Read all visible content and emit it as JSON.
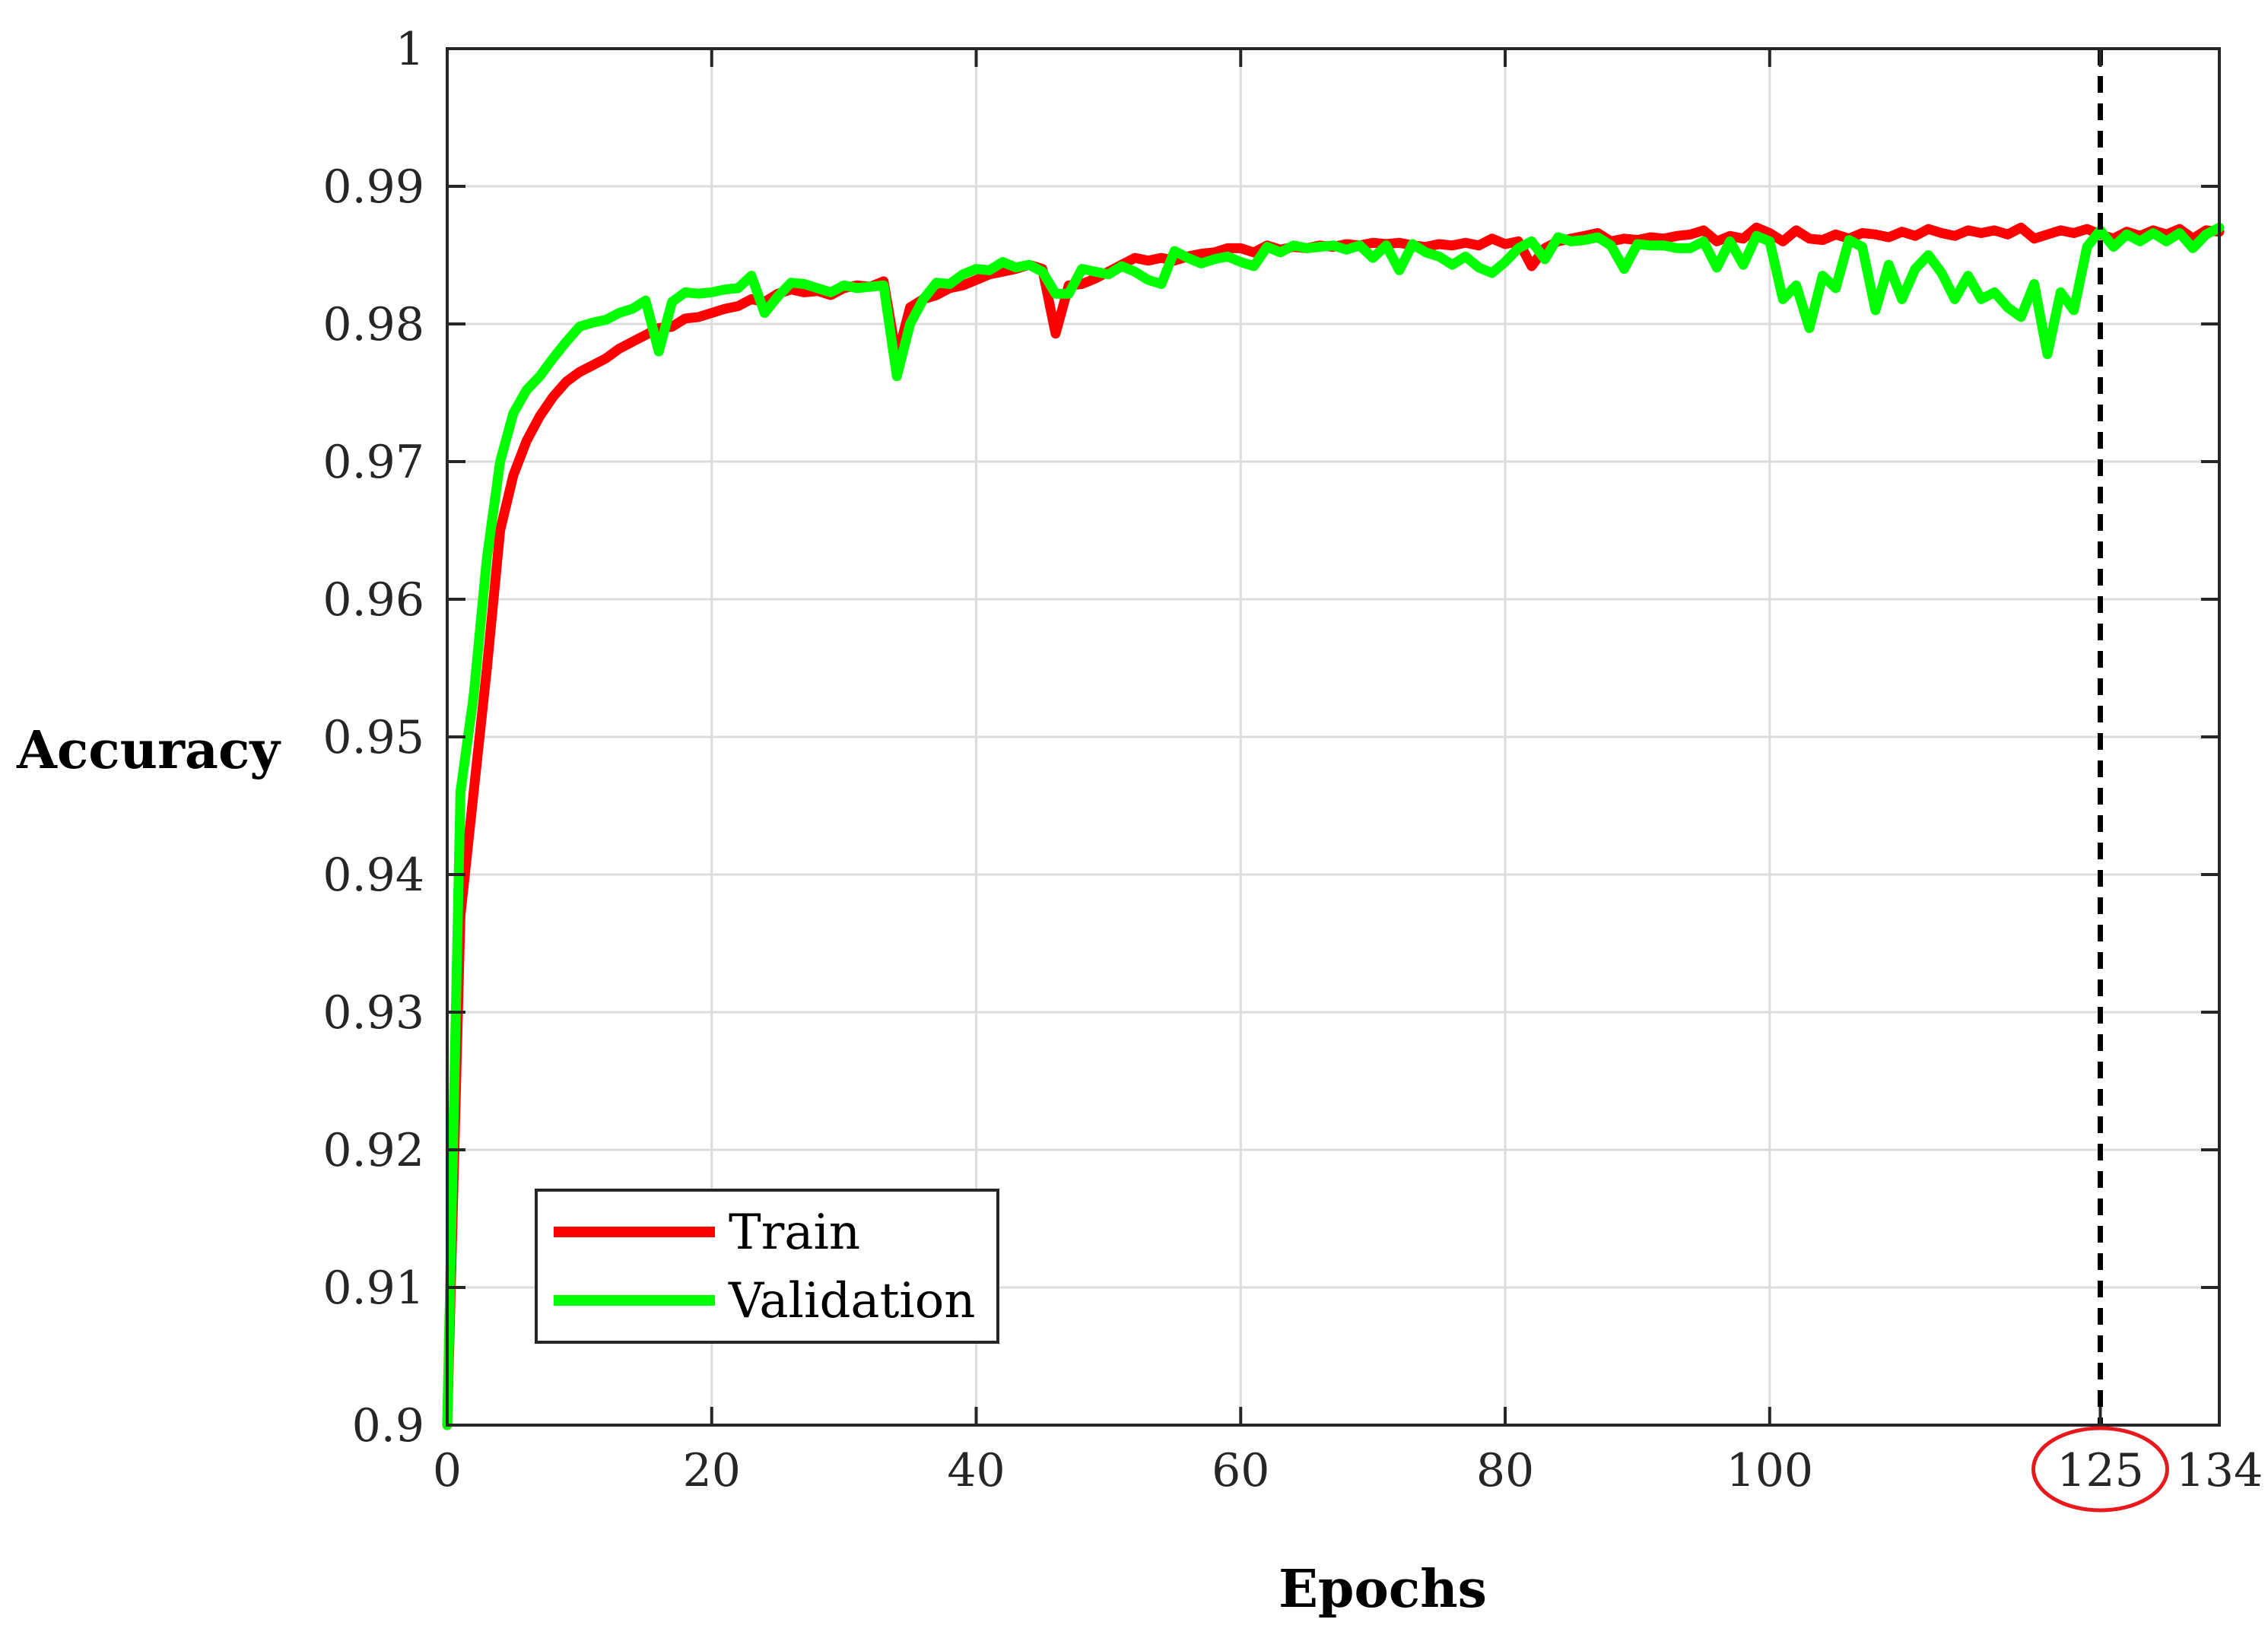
{
  "chart_data": {
    "type": "line",
    "title": "",
    "xlabel": "Epochs",
    "ylabel": "Accuracy",
    "xlim": [
      0,
      134
    ],
    "ylim": [
      0.9,
      1.0
    ],
    "grid": true,
    "xticks": [
      0,
      20,
      40,
      60,
      80,
      100,
      125,
      134
    ],
    "xtick_labels": [
      "0",
      "20",
      "40",
      "60",
      "80",
      "100",
      "125",
      "134"
    ],
    "yticks": [
      0.9,
      0.91,
      0.92,
      0.93,
      0.94,
      0.95,
      0.96,
      0.97,
      0.98,
      0.99,
      1.0
    ],
    "ytick_labels": [
      "0.9",
      "0.91",
      "0.92",
      "0.93",
      "0.94",
      "0.95",
      "0.96",
      "0.97",
      "0.98",
      "0.99",
      "1"
    ],
    "legend_position": "bottom-left",
    "annotations": [
      {
        "type": "vertical-dashed-line",
        "x": 125,
        "color": "#000000"
      },
      {
        "type": "circle-highlight",
        "target_tick": "125",
        "color": "#e8191c"
      }
    ],
    "series": [
      {
        "name": "Train",
        "color": "#ff0000",
        "x": [
          0,
          1,
          2,
          3,
          4,
          5,
          6,
          7,
          8,
          9,
          10,
          11,
          12,
          13,
          14,
          15,
          16,
          17,
          18,
          19,
          20,
          21,
          22,
          23,
          24,
          25,
          26,
          27,
          28,
          29,
          30,
          31,
          32,
          33,
          34,
          35,
          36,
          37,
          38,
          39,
          40,
          41,
          42,
          43,
          44,
          45,
          46,
          47,
          48,
          49,
          50,
          51,
          52,
          53,
          54,
          55,
          56,
          57,
          58,
          59,
          60,
          61,
          62,
          63,
          64,
          65,
          66,
          67,
          68,
          69,
          70,
          71,
          72,
          73,
          74,
          75,
          76,
          77,
          78,
          79,
          80,
          81,
          82,
          83,
          84,
          85,
          86,
          87,
          88,
          89,
          90,
          91,
          92,
          93,
          94,
          95,
          96,
          97,
          98,
          99,
          100,
          101,
          102,
          103,
          104,
          105,
          106,
          107,
          108,
          109,
          110,
          111,
          112,
          113,
          114,
          115,
          116,
          117,
          118,
          119,
          120,
          121,
          122,
          123,
          124,
          125,
          126,
          127,
          128,
          129,
          130,
          131,
          132,
          133,
          134
        ],
        "values": [
          0.9,
          0.937,
          0.946,
          0.955,
          0.965,
          0.969,
          0.9715,
          0.9733,
          0.9747,
          0.9758,
          0.9765,
          0.977,
          0.9775,
          0.9782,
          0.9787,
          0.9792,
          0.9797,
          0.9798,
          0.9804,
          0.9805,
          0.9808,
          0.9811,
          0.9813,
          0.9818,
          0.9816,
          0.9822,
          0.9825,
          0.9823,
          0.9824,
          0.9821,
          0.9826,
          0.9828,
          0.9827,
          0.9831,
          0.9775,
          0.9812,
          0.9818,
          0.9821,
          0.9826,
          0.9828,
          0.9832,
          0.9836,
          0.9838,
          0.984,
          0.9843,
          0.984,
          0.9793,
          0.9828,
          0.9829,
          0.9833,
          0.9838,
          0.9843,
          0.9848,
          0.9846,
          0.9848,
          0.9846,
          0.9849,
          0.9851,
          0.9852,
          0.9855,
          0.9855,
          0.9852,
          0.9857,
          0.9854,
          0.9856,
          0.9855,
          0.9857,
          0.9856,
          0.9858,
          0.9857,
          0.9859,
          0.9858,
          0.9859,
          0.9857,
          0.9856,
          0.9858,
          0.9857,
          0.9859,
          0.9857,
          0.9862,
          0.9858,
          0.986,
          0.9842,
          0.9855,
          0.986,
          0.9862,
          0.9864,
          0.9866,
          0.986,
          0.9862,
          0.9861,
          0.9863,
          0.9862,
          0.9864,
          0.9865,
          0.9868,
          0.986,
          0.9864,
          0.9862,
          0.987,
          0.9866,
          0.986,
          0.9868,
          0.9862,
          0.9861,
          0.9865,
          0.9862,
          0.9866,
          0.9865,
          0.9863,
          0.9867,
          0.9864,
          0.9869,
          0.9866,
          0.9864,
          0.9868,
          0.9866,
          0.9868,
          0.9865,
          0.987,
          0.9862,
          0.9865,
          0.9868,
          0.9866,
          0.9869,
          0.9865,
          0.9862,
          0.9867,
          0.9864,
          0.9868,
          0.9865,
          0.9869,
          0.9862,
          0.9868,
          0.9867
        ]
      },
      {
        "name": "Validation",
        "color": "#00ff00",
        "x": [
          0,
          1,
          2,
          3,
          4,
          5,
          6,
          7,
          8,
          9,
          10,
          11,
          12,
          13,
          14,
          15,
          16,
          17,
          18,
          19,
          20,
          21,
          22,
          23,
          24,
          25,
          26,
          27,
          28,
          29,
          30,
          31,
          32,
          33,
          34,
          35,
          36,
          37,
          38,
          39,
          40,
          41,
          42,
          43,
          44,
          45,
          46,
          47,
          48,
          49,
          50,
          51,
          52,
          53,
          54,
          55,
          56,
          57,
          58,
          59,
          60,
          61,
          62,
          63,
          64,
          65,
          66,
          67,
          68,
          69,
          70,
          71,
          72,
          73,
          74,
          75,
          76,
          77,
          78,
          79,
          80,
          81,
          82,
          83,
          84,
          85,
          86,
          87,
          88,
          89,
          90,
          91,
          92,
          93,
          94,
          95,
          96,
          97,
          98,
          99,
          100,
          101,
          102,
          103,
          104,
          105,
          106,
          107,
          108,
          109,
          110,
          111,
          112,
          113,
          114,
          115,
          116,
          117,
          118,
          119,
          120,
          121,
          122,
          123,
          124,
          125,
          126,
          127,
          128,
          129,
          130,
          131,
          132,
          133,
          134
        ],
        "values": [
          0.9,
          0.946,
          0.953,
          0.963,
          0.97,
          0.9735,
          0.9752,
          0.9762,
          0.9775,
          0.9787,
          0.9798,
          0.9801,
          0.9803,
          0.9808,
          0.9811,
          0.9817,
          0.978,
          0.9816,
          0.9823,
          0.9822,
          0.9823,
          0.9825,
          0.9826,
          0.9835,
          0.9808,
          0.982,
          0.983,
          0.9829,
          0.9826,
          0.9823,
          0.9828,
          0.9826,
          0.9827,
          0.9828,
          0.9762,
          0.98,
          0.9818,
          0.983,
          0.9829,
          0.9836,
          0.984,
          0.9839,
          0.9845,
          0.9841,
          0.9843,
          0.9838,
          0.9822,
          0.9822,
          0.984,
          0.9838,
          0.9836,
          0.9842,
          0.9838,
          0.9832,
          0.9829,
          0.9853,
          0.9848,
          0.9844,
          0.9847,
          0.9849,
          0.9845,
          0.9842,
          0.9856,
          0.9852,
          0.9857,
          0.9855,
          0.9856,
          0.9857,
          0.9854,
          0.9857,
          0.9848,
          0.9857,
          0.9839,
          0.9858,
          0.9852,
          0.9849,
          0.9843,
          0.9849,
          0.9841,
          0.9837,
          0.9845,
          0.9855,
          0.986,
          0.9847,
          0.9863,
          0.986,
          0.9861,
          0.9863,
          0.9857,
          0.984,
          0.9858,
          0.9857,
          0.9857,
          0.9855,
          0.9855,
          0.986,
          0.9841,
          0.986,
          0.9843,
          0.9864,
          0.986,
          0.9818,
          0.9828,
          0.9797,
          0.9835,
          0.9826,
          0.9861,
          0.9856,
          0.981,
          0.9843,
          0.9818,
          0.984,
          0.985,
          0.9837,
          0.9818,
          0.9835,
          0.9818,
          0.9823,
          0.9812,
          0.9805,
          0.9829,
          0.9778,
          0.9823,
          0.981,
          0.9856,
          0.9868,
          0.9856,
          0.9865,
          0.986,
          0.9866,
          0.986,
          0.9866,
          0.9855,
          0.9865,
          0.987
        ]
      }
    ]
  }
}
